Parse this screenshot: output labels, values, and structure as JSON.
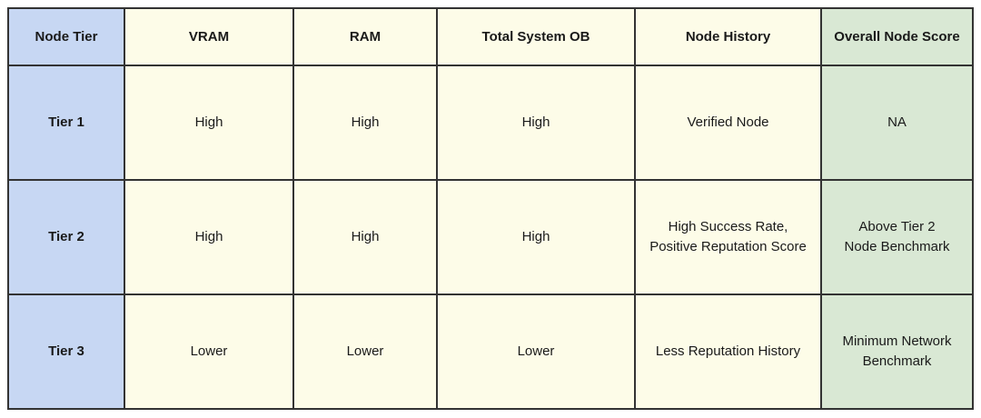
{
  "title": "Node Tier comparison table",
  "colors": {
    "tier_column_bg": "#c7d7f3",
    "middle_columns_bg": "#fdfce8",
    "score_column_bg": "#d9e8d4",
    "border": "#333333",
    "text": "#1a1a1a",
    "page_bg": "#ffffff"
  },
  "chart_data": {
    "type": "table",
    "columns": [
      "Node Tier",
      "VRAM",
      "RAM",
      "Total System OB",
      "Node History",
      "Overall Node Score"
    ],
    "rows": [
      [
        "Tier 1",
        "High",
        "High",
        "High",
        "Verified Node",
        "NA"
      ],
      [
        "Tier 2",
        "High",
        "High",
        "High",
        "High Success Rate,\nPositive Reputation Score",
        "Above Tier 2\nNode Benchmark"
      ],
      [
        "Tier 3",
        "Lower",
        "Lower",
        "Lower",
        "Less Reputation History",
        "Minimum Network\nBenchmark"
      ]
    ],
    "layout_hints": {
      "grid": "all-borders",
      "header_style": "bold",
      "first_column_style": "bold-blue",
      "last_column_style": "green"
    }
  }
}
